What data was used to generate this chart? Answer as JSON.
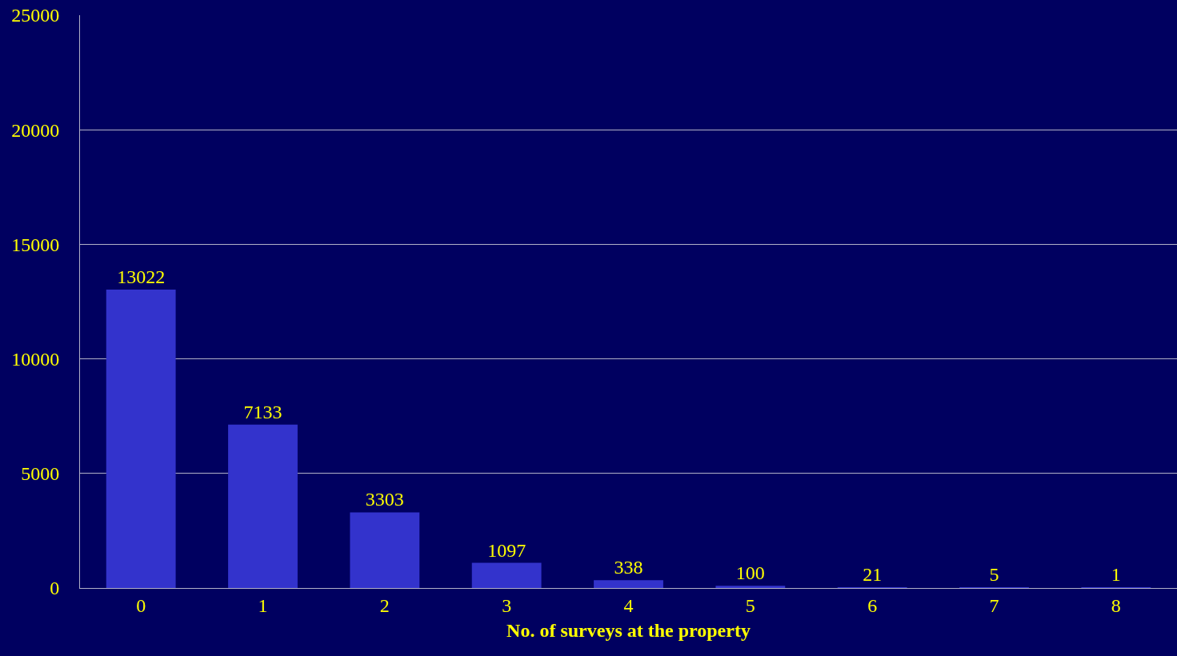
{
  "chart_data": {
    "type": "bar",
    "xlabel": "No. of surveys at the property",
    "categories": [
      "0",
      "1",
      "2",
      "3",
      "4",
      "5",
      "6",
      "7",
      "8"
    ],
    "values": [
      13022,
      7133,
      3303,
      1097,
      338,
      100,
      21,
      5,
      1
    ],
    "color": "#3333cc",
    "ylim": [
      0,
      25000
    ],
    "yticks": [
      0,
      5000,
      10000,
      15000,
      20000,
      25000
    ],
    "grid": "y",
    "data_labels": true,
    "legend": false
  }
}
